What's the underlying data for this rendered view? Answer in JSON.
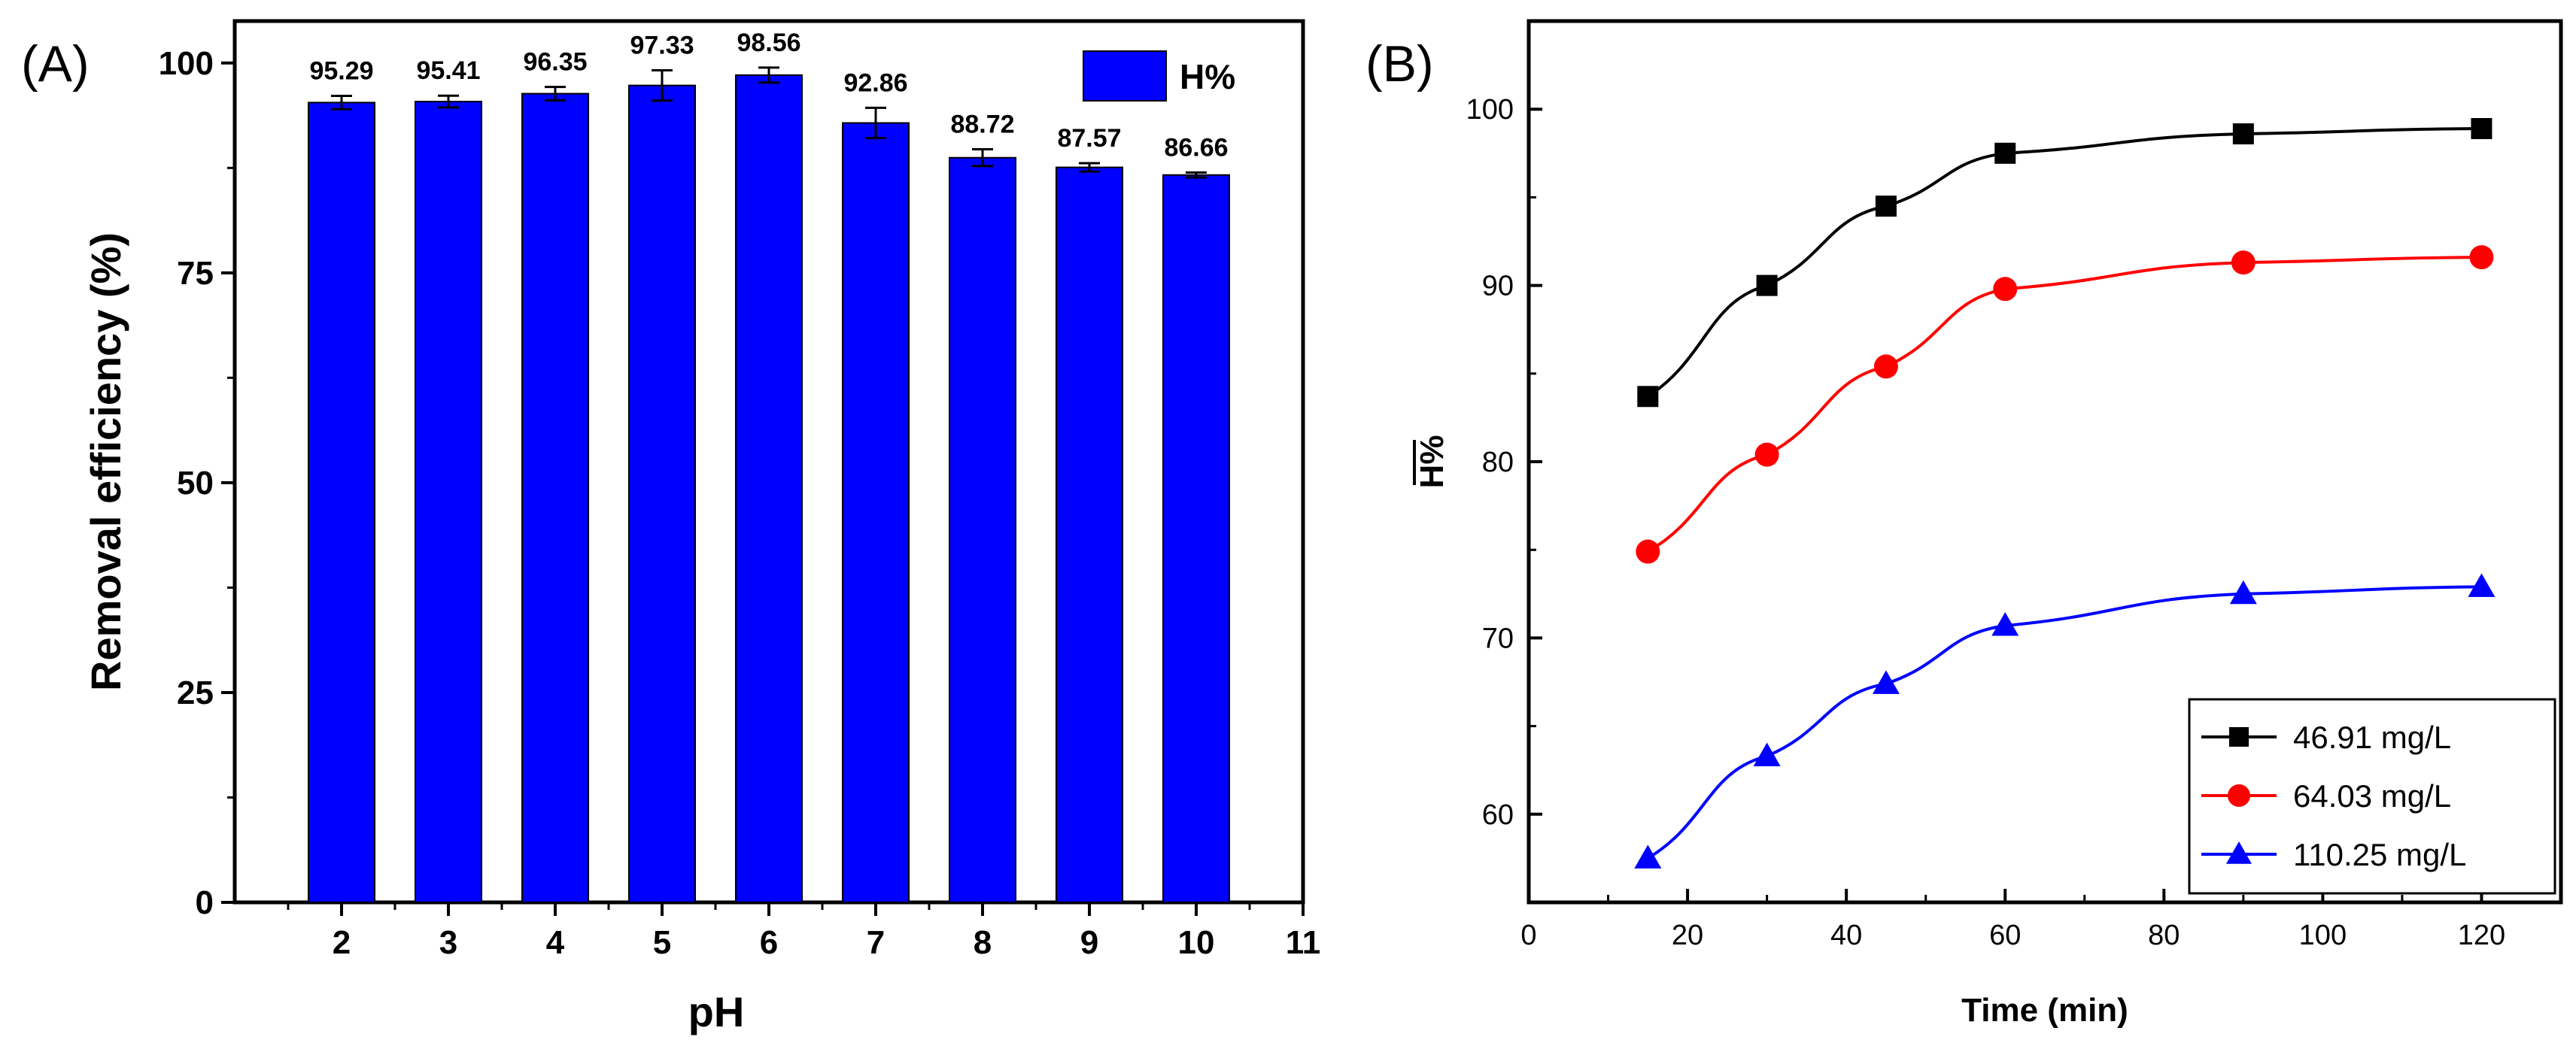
{
  "chart_data": [
    {
      "panel": "(A)",
      "type": "bar",
      "xlabel": "pH",
      "ylabel": "Removal efficiency (%)",
      "ylim": [
        0,
        105
      ],
      "xlim": [
        1,
        11
      ],
      "yticks": [
        0,
        25,
        50,
        75,
        100
      ],
      "xticks": [
        2,
        3,
        4,
        5,
        6,
        7,
        8,
        9,
        10,
        11
      ],
      "categories": [
        2,
        3,
        4,
        5,
        6,
        7,
        8,
        9,
        10
      ],
      "values": [
        95.29,
        95.41,
        96.35,
        97.33,
        98.56,
        92.86,
        88.72,
        87.57,
        86.66
      ],
      "value_labels": [
        "95.29",
        "95.41",
        "96.35",
        "97.33",
        "98.56",
        "92.86",
        "88.72",
        "87.57",
        "86.66"
      ],
      "errors": [
        0.8,
        0.7,
        0.8,
        1.8,
        0.9,
        1.8,
        1.0,
        0.5,
        0.3
      ],
      "legend": "H%",
      "legend_position": "top-right",
      "color": "#0000ff"
    },
    {
      "panel": "(B)",
      "type": "line",
      "xlabel": "Time (min)",
      "ylabel": "H%",
      "xlim": [
        0,
        130
      ],
      "ylim": [
        55,
        105
      ],
      "xticks": [
        0,
        20,
        40,
        60,
        80,
        100,
        120
      ],
      "yticks": [
        60,
        70,
        80,
        90,
        100
      ],
      "x": [
        15,
        30,
        45,
        60,
        90,
        120
      ],
      "legend_position": "bottom-right",
      "series": [
        {
          "name": "46.91 mg/L",
          "color": "#000000",
          "marker": "square",
          "values": [
            83.7,
            90.0,
            94.5,
            97.5,
            98.6,
            98.9
          ]
        },
        {
          "name": "64.03 mg/L",
          "color": "#ff0000",
          "marker": "circle",
          "values": [
            74.9,
            80.4,
            85.4,
            89.8,
            91.3,
            91.6
          ]
        },
        {
          "name": "110.25 mg/L",
          "color": "#0000ff",
          "marker": "triangle",
          "values": [
            57.5,
            63.3,
            67.4,
            70.7,
            72.5,
            72.9
          ]
        }
      ]
    }
  ]
}
